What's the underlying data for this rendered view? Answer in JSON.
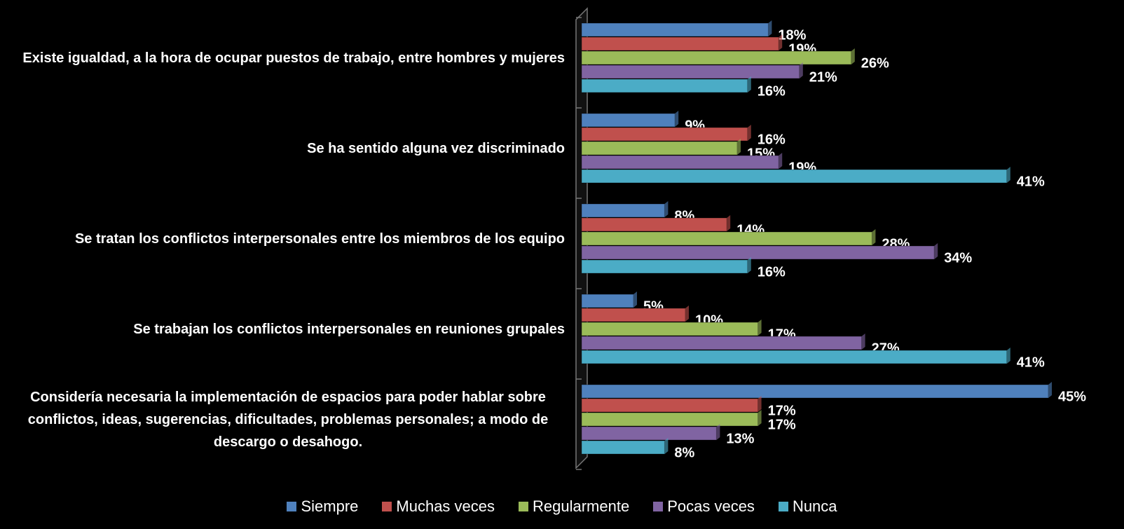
{
  "chart_data": {
    "type": "hbar",
    "categories": [
      "Existe igualdad,  a la hora de ocupar  puestos de trabajo,  entre hombres y mujeres",
      "Se ha sentido alguna  vez discriminado",
      "Se tratan los conflictos  interpersonales entre los miembros de los equipo",
      "Se trabajan  los conflictos  interpersonales  en reuniones grupales",
      "Considería necesaria  la implementación  de espacios  para poder hablar sobre conflictos,  ideas, sugerencias,  dificultades,  problemas personales; a modo de descargo  o  desahogo."
    ],
    "series": [
      {
        "name": "Siempre",
        "color": "#4f81bd",
        "values": [
          18,
          9,
          8,
          5,
          45
        ],
        "value_labels": [
          "18%",
          "9%",
          "8%",
          "5%",
          "45%"
        ]
      },
      {
        "name": "Muchas veces",
        "color": "#c0504d",
        "values": [
          19,
          16,
          14,
          10,
          17
        ],
        "value_labels": [
          "19%",
          "16%",
          "14%",
          "10%",
          "17%"
        ]
      },
      {
        "name": "Regularmente",
        "color": "#9bbb59",
        "values": [
          26,
          15,
          28,
          17,
          17
        ],
        "value_labels": [
          "26%",
          "15%",
          "28%",
          "17%",
          "17%"
        ]
      },
      {
        "name": "Pocas veces",
        "color": "#8064a2",
        "values": [
          21,
          19,
          34,
          27,
          13
        ],
        "value_labels": [
          "21%",
          "19%",
          "34%",
          "27%",
          "13%"
        ]
      },
      {
        "name": "Nunca",
        "color": "#4bacc6",
        "values": [
          16,
          41,
          16,
          41,
          8
        ],
        "value_labels": [
          "16%",
          "41%",
          "16%",
          "41%",
          "8%"
        ]
      }
    ],
    "legend": "bottom"
  }
}
